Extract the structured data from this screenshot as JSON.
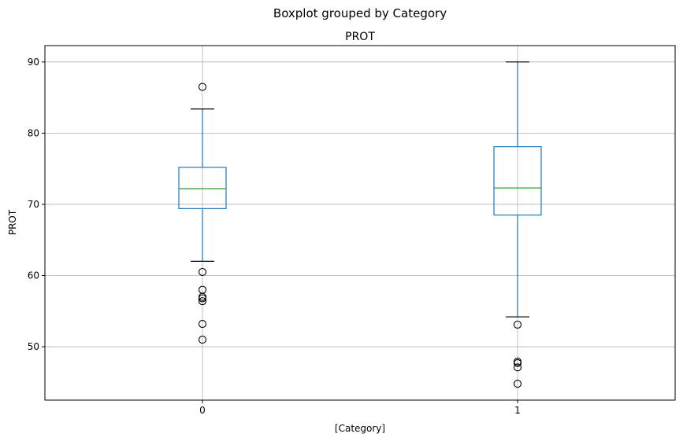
{
  "chart_data": {
    "type": "box",
    "suptitle": "Boxplot grouped by Category",
    "title": "PROT",
    "xlabel": "[Category]",
    "ylabel": "PROT",
    "categories": [
      "0",
      "1"
    ],
    "ylim": [
      42.5,
      92.3
    ],
    "yticks": [
      50,
      60,
      70,
      80,
      90
    ],
    "grid": true,
    "colors": {
      "box": "#1f77b4",
      "median": "#2ca02c",
      "whisker_cap": "#000000",
      "grid": "#b0b0b0",
      "flier": "#000000"
    },
    "boxes": [
      {
        "category": "0",
        "whisker_low": 62.0,
        "q1": 69.4,
        "median": 72.2,
        "q3": 75.2,
        "whisker_high": 83.4,
        "fliers": [
          86.5,
          60.5,
          58.0,
          57.0,
          56.8,
          56.4,
          53.2,
          51.0
        ]
      },
      {
        "category": "1",
        "whisker_low": 54.2,
        "q1": 68.5,
        "median": 72.3,
        "q3": 78.1,
        "whisker_high": 90.0,
        "fliers": [
          53.1,
          47.9,
          47.7,
          47.1,
          44.8
        ]
      }
    ]
  }
}
